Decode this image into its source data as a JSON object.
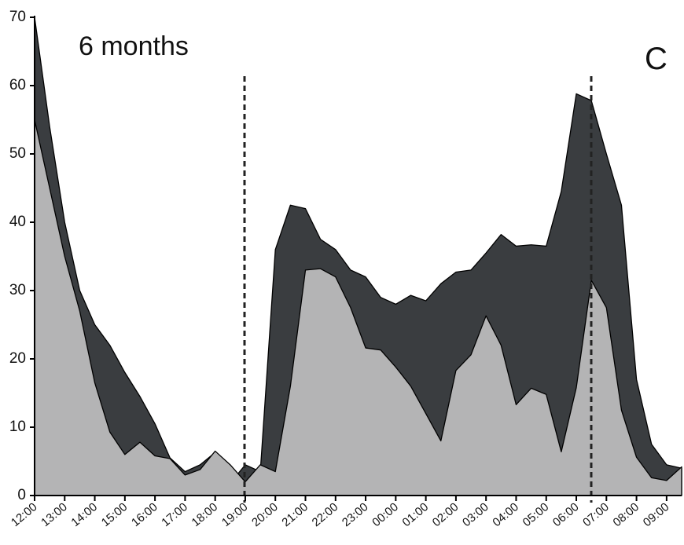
{
  "chart_data": {
    "type": "area",
    "title": "6 months",
    "annotation": "C",
    "categories": [
      "12:00",
      null,
      "13:00",
      null,
      "14:00",
      null,
      "15:00",
      null,
      "16:00",
      null,
      "17:00",
      null,
      "18:00",
      null,
      "19:00",
      null,
      "20:00",
      null,
      "21:00",
      null,
      "22:00",
      null,
      "23:00",
      null,
      "00:00",
      null,
      "01:00",
      null,
      "02:00",
      null,
      "03:00",
      null,
      "04:00",
      null,
      "05:00",
      null,
      "06:00",
      null,
      "07:00",
      null,
      "08:00",
      null,
      "09:00",
      null
    ],
    "series": [
      {
        "color": "#3a3d40",
        "values": [
          70,
          54,
          40,
          30,
          25,
          22,
          18,
          14.5,
          10.5,
          5.5,
          3.5,
          4.5,
          6.3,
          1.8,
          4.5,
          3.5,
          36,
          42.5,
          42,
          37.5,
          36,
          33,
          32,
          29,
          28,
          29.3,
          28.5,
          31,
          32.7,
          33,
          35.5,
          38.2,
          36.5,
          36.7,
          36.5,
          44.5,
          58.8,
          57.8,
          50,
          42.5,
          17,
          7.5,
          4.5,
          4
        ]
      },
      {
        "color": "#b4b4b5",
        "values": [
          55,
          45,
          35,
          27,
          16.5,
          9.3,
          6,
          7.8,
          5.8,
          5.4,
          3,
          3.8,
          6.5,
          4.5,
          2,
          4.5,
          3.5,
          16,
          33,
          33.2,
          32,
          27.5,
          21.6,
          21.3,
          18.8,
          16,
          12,
          8,
          18.3,
          20.6,
          26.3,
          22,
          13.3,
          15.7,
          14.8,
          6.4,
          15.8,
          31.5,
          27.5,
          12.5,
          5.6,
          2.6,
          2.2,
          4.2
        ]
      }
    ],
    "ylim": [
      0,
      70
    ],
    "yticks": [
      0,
      10,
      20,
      30,
      40,
      50,
      60,
      70
    ],
    "grid": false
  }
}
